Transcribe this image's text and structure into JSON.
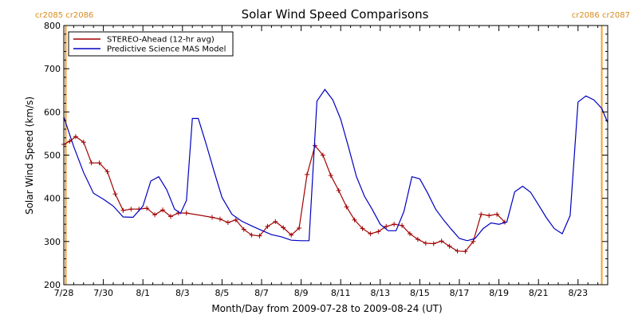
{
  "chart_data": {
    "type": "line",
    "title": "Solar Wind Speed Comparisons",
    "xlabel": "Month/Day from 2009-07-28 to 2009-08-24 (UT)",
    "ylabel": "Solar Wind Speed (km/s)",
    "xlim": [
      0,
      27.5
    ],
    "ylim": [
      200,
      800
    ],
    "x_ticks": [
      {
        "x": 0,
        "label": "7/28"
      },
      {
        "x": 2,
        "label": "7/30"
      },
      {
        "x": 4,
        "label": "8/1"
      },
      {
        "x": 6,
        "label": "8/3"
      },
      {
        "x": 8,
        "label": "8/5"
      },
      {
        "x": 10,
        "label": "8/7"
      },
      {
        "x": 12,
        "label": "8/9"
      },
      {
        "x": 14,
        "label": "8/11"
      },
      {
        "x": 16,
        "label": "8/13"
      },
      {
        "x": 18,
        "label": "8/15"
      },
      {
        "x": 20,
        "label": "8/17"
      },
      {
        "x": 22,
        "label": "8/19"
      },
      {
        "x": 24,
        "label": "8/21"
      },
      {
        "x": 26,
        "label": "8/23"
      }
    ],
    "y_ticks": [
      200,
      300,
      400,
      500,
      600,
      700,
      800
    ],
    "rotation_markers": {
      "left": {
        "x": 0.1,
        "label": "cr2085 cr2086"
      },
      "right": {
        "x": 27.2,
        "label": "cr2086 cr2087"
      },
      "color": "#f0a030"
    },
    "legend": {
      "position": "top-left"
    },
    "series": [
      {
        "name": "STEREO-Ahead (12-hr avg)",
        "color": "#a00000",
        "points": [
          [
            0.0,
            525
          ],
          [
            0.3,
            532
          ],
          [
            0.6,
            543
          ],
          [
            1.0,
            530
          ],
          [
            1.4,
            482
          ],
          [
            1.8,
            482
          ],
          [
            2.2,
            462
          ],
          [
            2.6,
            410
          ],
          [
            3.0,
            372
          ],
          [
            3.4,
            375
          ],
          [
            3.8,
            375
          ],
          [
            4.2,
            377
          ],
          [
            4.6,
            362
          ],
          [
            5.0,
            373
          ],
          [
            5.4,
            358
          ],
          [
            5.8,
            366
          ],
          [
            6.2,
            366
          ],
          [
            7.5,
            356
          ],
          [
            7.9,
            352
          ],
          [
            8.3,
            344
          ],
          [
            8.7,
            350
          ],
          [
            9.1,
            328
          ],
          [
            9.5,
            315
          ],
          [
            9.9,
            313
          ],
          [
            10.3,
            335
          ],
          [
            10.7,
            346
          ],
          [
            11.1,
            332
          ],
          [
            11.5,
            315
          ],
          [
            11.9,
            331
          ],
          [
            12.3,
            455
          ],
          [
            12.7,
            522
          ],
          [
            13.1,
            500
          ],
          [
            13.5,
            453
          ],
          [
            13.9,
            418
          ],
          [
            14.3,
            380
          ],
          [
            14.7,
            350
          ],
          [
            15.1,
            330
          ],
          [
            15.5,
            318
          ],
          [
            15.9,
            323
          ],
          [
            16.3,
            335
          ],
          [
            16.7,
            340
          ],
          [
            17.1,
            337
          ],
          [
            17.5,
            318
          ],
          [
            17.9,
            305
          ],
          [
            18.3,
            296
          ],
          [
            18.7,
            295
          ],
          [
            19.1,
            301
          ],
          [
            19.5,
            289
          ],
          [
            19.9,
            278
          ],
          [
            20.3,
            277
          ],
          [
            20.7,
            300
          ],
          [
            21.1,
            363
          ],
          [
            21.5,
            360
          ],
          [
            21.9,
            363
          ],
          [
            22.3,
            345
          ]
        ]
      },
      {
        "name": "Predictive Science MAS Model",
        "color": "#0000c0",
        "points": [
          [
            0.0,
            588
          ],
          [
            0.5,
            520
          ],
          [
            1.0,
            460
          ],
          [
            1.5,
            412
          ],
          [
            2.0,
            398
          ],
          [
            2.5,
            382
          ],
          [
            3.0,
            357
          ],
          [
            3.5,
            356
          ],
          [
            4.0,
            382
          ],
          [
            4.4,
            440
          ],
          [
            4.8,
            450
          ],
          [
            5.2,
            420
          ],
          [
            5.6,
            375
          ],
          [
            5.9,
            365
          ],
          [
            6.2,
            395
          ],
          [
            6.5,
            585
          ],
          [
            6.8,
            585
          ],
          [
            7.2,
            525
          ],
          [
            7.6,
            462
          ],
          [
            8.0,
            402
          ],
          [
            8.5,
            363
          ],
          [
            9.0,
            347
          ],
          [
            9.5,
            336
          ],
          [
            10.0,
            326
          ],
          [
            10.5,
            316
          ],
          [
            11.0,
            311
          ],
          [
            11.5,
            303
          ],
          [
            12.0,
            302
          ],
          [
            12.4,
            302
          ],
          [
            12.8,
            625
          ],
          [
            13.2,
            652
          ],
          [
            13.6,
            628
          ],
          [
            14.0,
            583
          ],
          [
            14.4,
            518
          ],
          [
            14.8,
            450
          ],
          [
            15.2,
            405
          ],
          [
            15.6,
            374
          ],
          [
            16.0,
            340
          ],
          [
            16.4,
            325
          ],
          [
            16.8,
            325
          ],
          [
            17.2,
            370
          ],
          [
            17.6,
            450
          ],
          [
            18.0,
            445
          ],
          [
            18.4,
            412
          ],
          [
            18.8,
            375
          ],
          [
            19.2,
            350
          ],
          [
            19.6,
            328
          ],
          [
            20.0,
            307
          ],
          [
            20.4,
            302
          ],
          [
            20.8,
            307
          ],
          [
            21.2,
            330
          ],
          [
            21.6,
            343
          ],
          [
            22.0,
            340
          ],
          [
            22.4,
            345
          ],
          [
            22.8,
            415
          ],
          [
            23.2,
            428
          ],
          [
            23.6,
            414
          ],
          [
            24.0,
            385
          ],
          [
            24.4,
            355
          ],
          [
            24.8,
            330
          ],
          [
            25.2,
            318
          ],
          [
            25.6,
            360
          ],
          [
            26.0,
            623
          ],
          [
            26.4,
            637
          ],
          [
            26.8,
            628
          ],
          [
            27.2,
            608
          ],
          [
            27.5,
            575
          ]
        ]
      }
    ]
  }
}
